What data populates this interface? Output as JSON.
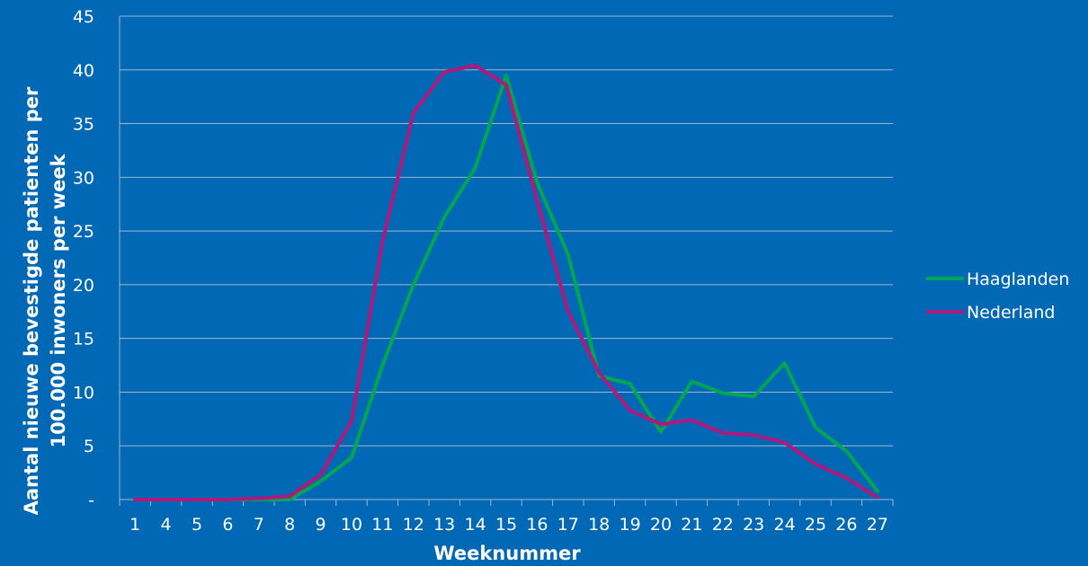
{
  "chart_data": {
    "type": "line",
    "title": "",
    "xlabel": "Weeknummer",
    "ylabel_line1": "Aantal nieuwe bevestigde patienten per",
    "ylabel_line2": "100.000 inwoners per week",
    "categories": [
      "1",
      "4",
      "5",
      "6",
      "7",
      "8",
      "9",
      "10",
      "11",
      "12",
      "13",
      "14",
      "15",
      "16",
      "17",
      "18",
      "19",
      "20",
      "21",
      "22",
      "23",
      "24",
      "25",
      "26",
      "27"
    ],
    "yticks": [
      "-",
      "5",
      "10",
      "15",
      "20",
      "25",
      "30",
      "35",
      "40",
      "45"
    ],
    "ylim": [
      0,
      45
    ],
    "grid": true,
    "legend_position": "right",
    "series": [
      {
        "name": "Haaglanden",
        "color": "#00a651",
        "values": [
          0,
          0,
          0,
          0,
          0,
          0,
          1.7,
          3.9,
          12.5,
          20.0,
          26.3,
          30.9,
          39.5,
          29.5,
          22.8,
          11.5,
          10.8,
          6.3,
          11.0,
          9.9,
          9.6,
          12.7,
          6.7,
          4.5,
          0.8
        ]
      },
      {
        "name": "Nederland",
        "color": "#b0197c",
        "values": [
          0,
          0,
          0,
          0,
          0.1,
          0.3,
          2.3,
          7.3,
          24.0,
          36.0,
          39.8,
          40.4,
          38.6,
          27.8,
          17.5,
          11.8,
          8.3,
          7.0,
          7.4,
          6.2,
          6.0,
          5.3,
          3.3,
          2.0,
          0.2
        ]
      }
    ]
  }
}
